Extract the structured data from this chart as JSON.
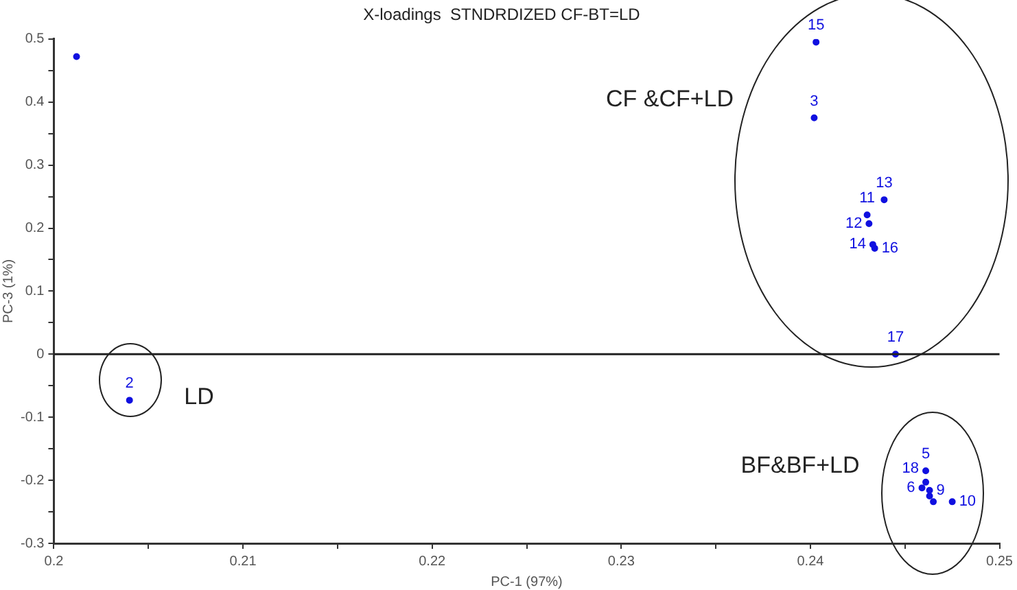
{
  "chart_data": {
    "type": "scatter",
    "title": "X-loadings  STNDRDIZED CF-BT=LD",
    "xlabel": "PC-1 (97%)",
    "ylabel": "PC-3 (1%)",
    "xlim": [
      0.2,
      0.25
    ],
    "xticks": [
      0.2,
      {
        "value": 0.205,
        "label": null
      },
      0.21,
      {
        "value": 0.215,
        "label": null
      },
      0.22,
      {
        "value": 0.225,
        "label": null
      },
      0.23,
      {
        "value": 0.235,
        "label": null
      },
      0.24,
      {
        "value": 0.245,
        "label": null
      },
      0.25
    ],
    "ylim": [
      -0.3,
      0.5
    ],
    "yticks": [
      -0.3,
      {
        "value": -0.25,
        "label": null
      },
      -0.2,
      {
        "value": -0.15,
        "label": null
      },
      -0.1,
      {
        "value": -0.05,
        "label": null
      },
      0,
      {
        "value": 0.05,
        "label": null
      },
      0.1,
      {
        "value": 0.15,
        "label": null
      },
      0.2,
      {
        "value": 0.25,
        "label": null
      },
      0.3,
      {
        "value": 0.35,
        "label": null
      },
      0.4,
      {
        "value": 0.45,
        "label": null
      },
      0.5
    ],
    "series": [
      {
        "color": "#1010e0",
        "x": [
          0.2012,
          0.204,
          0.2403,
          0.2402,
          0.2439,
          0.243,
          0.2431,
          0.2433,
          0.2434,
          0.2445,
          0.2461,
          0.2461,
          0.2459,
          0.2463,
          0.2463,
          0.2465,
          0.2475
        ],
        "values": [
          0.472,
          -0.073,
          0.495,
          0.375,
          0.245,
          0.221,
          0.207,
          0.174,
          0.168,
          0.0,
          -0.185,
          -0.203,
          -0.212,
          -0.216,
          -0.225,
          -0.234,
          -0.234
        ]
      }
    ],
    "marker": "circle",
    "ref_lines": [
      {
        "axis": "y",
        "value": 0,
        "color": "#222222"
      }
    ],
    "annotations": [
      "CF &CF+LD",
      "LD",
      "BF&BF+LD",
      {
        "text": "2",
        "x": 0.204,
        "y": -0.073
      },
      {
        "text": "15",
        "x": 0.2403,
        "y": 0.495
      },
      {
        "text": "3",
        "x": 0.2402,
        "y": 0.375
      },
      {
        "text": "13",
        "x": 0.2439,
        "y": 0.245
      },
      {
        "text": "11",
        "x": 0.243,
        "y": 0.221
      },
      {
        "text": "12",
        "x": 0.2431,
        "y": 0.207
      },
      {
        "text": "14",
        "x": 0.2433,
        "y": 0.174
      },
      {
        "text": "16",
        "x": 0.2434,
        "y": 0.168
      },
      {
        "text": "17",
        "x": 0.2445,
        "y": 0.0
      },
      {
        "text": "5",
        "x": 0.2461,
        "y": -0.185
      },
      {
        "text": "18",
        "x": 0.2461,
        "y": -0.203
      },
      {
        "text": "6",
        "x": 0.2459,
        "y": -0.212
      },
      {
        "text": "9",
        "x": 0.2463,
        "y": -0.216
      },
      {
        "text": "10",
        "x": 0.2475,
        "y": -0.234
      }
    ],
    "grid": false,
    "legend": false
  }
}
